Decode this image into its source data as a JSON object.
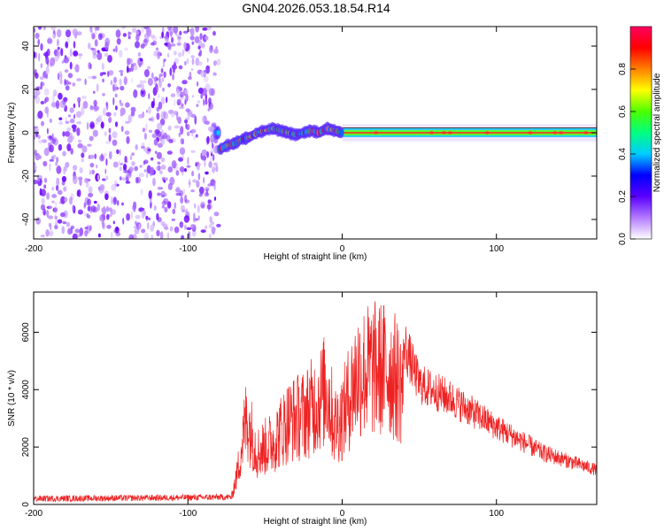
{
  "title": "GN04.2026.053.18.54.R14",
  "chart_data": [
    {
      "type": "heatmap",
      "xlabel": "Height of straight line (km)",
      "ylabel": "Frequency (Hz)",
      "xlim": [
        -200,
        165
      ],
      "ylim": [
        -49,
        49
      ],
      "xticks": [
        -200,
        -100,
        0,
        100
      ],
      "yticks": [
        -40,
        -20,
        0,
        20,
        40
      ],
      "tick_labels_x": [
        "-200",
        "-100",
        "0",
        "100"
      ],
      "tick_labels_y": [
        "-40",
        "-20",
        "0",
        "20",
        "40"
      ],
      "noise_region_x": [
        -200,
        -80
      ],
      "carrier_track": [
        {
          "x": -80,
          "y": -8
        },
        {
          "x": -75,
          "y": -6
        },
        {
          "x": -70,
          "y": -5
        },
        {
          "x": -65,
          "y": -3
        },
        {
          "x": -60,
          "y": -2
        },
        {
          "x": -55,
          "y": 0
        },
        {
          "x": -50,
          "y": 1
        },
        {
          "x": -45,
          "y": 2
        },
        {
          "x": -40,
          "y": 1
        },
        {
          "x": -35,
          "y": 0
        },
        {
          "x": -30,
          "y": -1
        },
        {
          "x": -25,
          "y": 0
        },
        {
          "x": -20,
          "y": 1
        },
        {
          "x": -15,
          "y": 0
        },
        {
          "x": -10,
          "y": 2
        },
        {
          "x": -5,
          "y": 1
        },
        {
          "x": 0,
          "y": 0
        },
        {
          "x": 165,
          "y": 0
        }
      ],
      "colorbar": {
        "label": "Normalized spectral amplitude",
        "range": [
          0,
          1
        ],
        "ticks": [
          "0.0",
          "0.2",
          "0.4",
          "0.6",
          "0.8"
        ],
        "tick_values": [
          0,
          0.2,
          0.4,
          0.6,
          0.8
        ],
        "colors": [
          "#ffffff",
          "#b37aff",
          "#5a00ff",
          "#0000ff",
          "#00ccff",
          "#00ff80",
          "#4cff00",
          "#ffff00",
          "#ff8000",
          "#ff0000",
          "#ff0060"
        ]
      }
    },
    {
      "type": "line",
      "xlabel": "Height of straight line (km)",
      "ylabel": "SNR (10 * v/v)",
      "xlim": [
        -200,
        165
      ],
      "ylim": [
        0,
        7400
      ],
      "xticks": [
        -200,
        -100,
        0,
        100
      ],
      "yticks": [
        0,
        2000,
        4000,
        6000
      ],
      "tick_labels_x": [
        "-200",
        "-100",
        "0",
        "100"
      ],
      "tick_labels_y": [
        "0",
        "2000",
        "4000",
        "6000"
      ],
      "color": "#ee2222",
      "envelope": [
        {
          "x": -200,
          "y": 200
        },
        {
          "x": -150,
          "y": 220
        },
        {
          "x": -100,
          "y": 240
        },
        {
          "x": -72,
          "y": 260
        },
        {
          "x": -68,
          "y": 1500
        },
        {
          "x": -62,
          "y": 4200
        },
        {
          "x": -55,
          "y": 2500
        },
        {
          "x": -45,
          "y": 3000
        },
        {
          "x": -35,
          "y": 4000
        },
        {
          "x": -25,
          "y": 4300
        },
        {
          "x": -15,
          "y": 5000
        },
        {
          "x": -10,
          "y": 5600
        },
        {
          "x": -5,
          "y": 3800
        },
        {
          "x": 0,
          "y": 4200
        },
        {
          "x": 10,
          "y": 6300
        },
        {
          "x": 20,
          "y": 6500
        },
        {
          "x": 30,
          "y": 6500
        },
        {
          "x": 40,
          "y": 5600
        },
        {
          "x": 50,
          "y": 4200
        },
        {
          "x": 70,
          "y": 3700
        },
        {
          "x": 100,
          "y": 2700
        },
        {
          "x": 130,
          "y": 1800
        },
        {
          "x": 165,
          "y": 1200
        }
      ]
    }
  ]
}
